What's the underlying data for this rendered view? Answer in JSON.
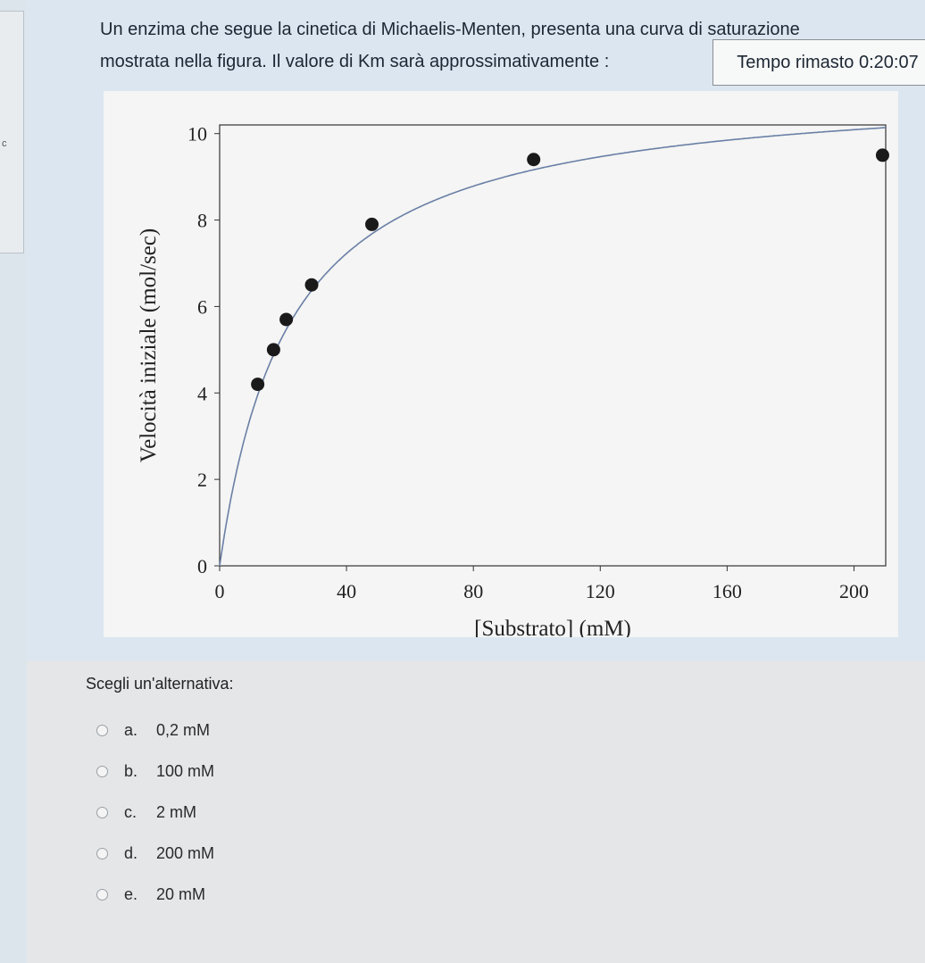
{
  "question": {
    "line1": "Un enzima che segue la cinetica di Michaelis-Menten, presenta una curva di saturazione",
    "line2": "mostrata nella figura. Il valore di Km sarà approssimativamente :"
  },
  "timer": {
    "label": "Tempo rimasto 0:20:07"
  },
  "chart_data": {
    "type": "scatter",
    "title": "",
    "xlabel": "[Substrato] (mM)",
    "ylabel": "Velocità iniziale (mol/sec)",
    "xlim": [
      0,
      210
    ],
    "ylim": [
      0,
      10.2
    ],
    "x_ticks": [
      0,
      40,
      80,
      120,
      160,
      200
    ],
    "y_ticks": [
      0,
      2,
      4,
      6,
      8,
      10
    ],
    "points": [
      {
        "x": 12,
        "y": 4.2
      },
      {
        "x": 17,
        "y": 5.0
      },
      {
        "x": 21,
        "y": 5.7
      },
      {
        "x": 29,
        "y": 6.5
      },
      {
        "x": 48,
        "y": 7.9
      },
      {
        "x": 99,
        "y": 9.4
      },
      {
        "x": 209,
        "y": 9.5
      }
    ],
    "fit_curve": {
      "model": "michaelis-menten",
      "vmax": 11.2,
      "km": 22
    },
    "colors": {
      "points": "#1a1a1a",
      "curve": "#6a7fa6",
      "frame": "#333333"
    }
  },
  "answers": {
    "prompt": "Scegli un'alternativa:",
    "options": [
      {
        "letter": "a.",
        "text": "0,2 mM"
      },
      {
        "letter": "b.",
        "text": "100 mM"
      },
      {
        "letter": "c.",
        "text": "2 mM"
      },
      {
        "letter": "d.",
        "text": "200 mM"
      },
      {
        "letter": "e.",
        "text": "20 mM"
      }
    ]
  }
}
